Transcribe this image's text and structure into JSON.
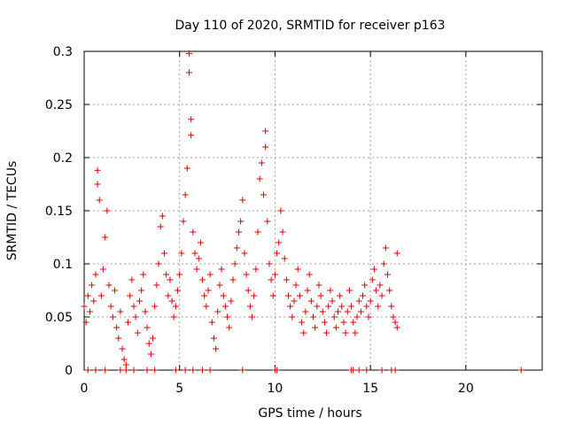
{
  "chart_data": {
    "type": "scatter",
    "title": "Day 110 of 2020, SRMTID for receiver p163",
    "xlabel": "GPS time / hours",
    "ylabel": "SRMTID / TECUs",
    "xlim": [
      0,
      24
    ],
    "ylim": [
      0,
      0.3
    ],
    "xticks": [
      0,
      5,
      10,
      15,
      20
    ],
    "yticks": [
      0,
      0.05,
      0.1,
      0.15,
      0.2,
      0.25,
      0.3
    ],
    "ytick_labels": [
      "0",
      "0.05",
      "0.1",
      "0.15",
      "0.2",
      "0.25",
      "0.3"
    ],
    "grid": true,
    "marker": "+",
    "series": [
      {
        "name": "SRMTID",
        "color": "#e00000",
        "points": [
          [
            0.0,
            0.06
          ],
          [
            0.1,
            0.045
          ],
          [
            0.2,
            0.07
          ],
          [
            0.3,
            0.055
          ],
          [
            0.4,
            0.08
          ],
          [
            0.5,
            0.065
          ],
          [
            0.6,
            0.09
          ],
          [
            0.7,
            0.188
          ],
          [
            0.7,
            0.175
          ],
          [
            0.8,
            0.16
          ],
          [
            0.9,
            0.07
          ],
          [
            1.0,
            0.095
          ],
          [
            1.1,
            0.125
          ],
          [
            1.2,
            0.15
          ],
          [
            1.3,
            0.08
          ],
          [
            1.4,
            0.06
          ],
          [
            1.5,
            0.05
          ],
          [
            1.6,
            0.075
          ],
          [
            1.7,
            0.04
          ],
          [
            1.8,
            0.03
          ],
          [
            1.9,
            0.055
          ],
          [
            2.0,
            0.02
          ],
          [
            2.1,
            0.01
          ],
          [
            2.2,
            0.005
          ],
          [
            2.3,
            0.045
          ],
          [
            2.4,
            0.07
          ],
          [
            2.5,
            0.085
          ],
          [
            2.6,
            0.06
          ],
          [
            2.7,
            0.05
          ],
          [
            2.8,
            0.035
          ],
          [
            2.9,
            0.065
          ],
          [
            3.0,
            0.075
          ],
          [
            3.1,
            0.09
          ],
          [
            3.2,
            0.055
          ],
          [
            3.3,
            0.04
          ],
          [
            3.4,
            0.025
          ],
          [
            3.5,
            0.015
          ],
          [
            3.6,
            0.03
          ],
          [
            3.7,
            0.06
          ],
          [
            3.8,
            0.08
          ],
          [
            3.9,
            0.1
          ],
          [
            4.0,
            0.135
          ],
          [
            4.1,
            0.145
          ],
          [
            4.2,
            0.11
          ],
          [
            4.3,
            0.09
          ],
          [
            4.4,
            0.07
          ],
          [
            4.5,
            0.085
          ],
          [
            4.6,
            0.065
          ],
          [
            4.7,
            0.05
          ],
          [
            4.8,
            0.06
          ],
          [
            4.9,
            0.075
          ],
          [
            5.0,
            0.09
          ],
          [
            5.1,
            0.11
          ],
          [
            5.2,
            0.14
          ],
          [
            5.3,
            0.165
          ],
          [
            5.4,
            0.19
          ],
          [
            5.5,
            0.28
          ],
          [
            5.5,
            0.298
          ],
          [
            5.6,
            0.236
          ],
          [
            5.6,
            0.221
          ],
          [
            5.7,
            0.13
          ],
          [
            5.8,
            0.11
          ],
          [
            5.9,
            0.095
          ],
          [
            6.0,
            0.105
          ],
          [
            6.1,
            0.12
          ],
          [
            6.2,
            0.085
          ],
          [
            6.3,
            0.07
          ],
          [
            6.4,
            0.06
          ],
          [
            6.5,
            0.075
          ],
          [
            6.6,
            0.09
          ],
          [
            6.7,
            0.045
          ],
          [
            6.8,
            0.03
          ],
          [
            6.9,
            0.02
          ],
          [
            7.0,
            0.055
          ],
          [
            7.1,
            0.08
          ],
          [
            7.2,
            0.095
          ],
          [
            7.3,
            0.07
          ],
          [
            7.4,
            0.06
          ],
          [
            7.5,
            0.05
          ],
          [
            7.6,
            0.04
          ],
          [
            7.7,
            0.065
          ],
          [
            7.8,
            0.085
          ],
          [
            7.9,
            0.1
          ],
          [
            8.0,
            0.115
          ],
          [
            8.1,
            0.13
          ],
          [
            8.2,
            0.14
          ],
          [
            8.3,
            0.16
          ],
          [
            8.4,
            0.11
          ],
          [
            8.5,
            0.09
          ],
          [
            8.6,
            0.075
          ],
          [
            8.7,
            0.06
          ],
          [
            8.8,
            0.05
          ],
          [
            8.9,
            0.07
          ],
          [
            9.0,
            0.095
          ],
          [
            9.1,
            0.13
          ],
          [
            9.2,
            0.18
          ],
          [
            9.3,
            0.195
          ],
          [
            9.4,
            0.165
          ],
          [
            9.5,
            0.225
          ],
          [
            9.5,
            0.21
          ],
          [
            9.6,
            0.14
          ],
          [
            9.7,
            0.1
          ],
          [
            9.8,
            0.085
          ],
          [
            9.9,
            0.07
          ],
          [
            10.0,
            0.09
          ],
          [
            10.1,
            0.11
          ],
          [
            10.2,
            0.12
          ],
          [
            10.3,
            0.15
          ],
          [
            10.4,
            0.13
          ],
          [
            10.5,
            0.105
          ],
          [
            10.6,
            0.085
          ],
          [
            10.7,
            0.07
          ],
          [
            10.8,
            0.06
          ],
          [
            10.9,
            0.05
          ],
          [
            11.0,
            0.065
          ],
          [
            11.1,
            0.08
          ],
          [
            11.2,
            0.095
          ],
          [
            11.3,
            0.07
          ],
          [
            11.4,
            0.045
          ],
          [
            11.5,
            0.035
          ],
          [
            11.6,
            0.055
          ],
          [
            11.7,
            0.075
          ],
          [
            11.8,
            0.09
          ],
          [
            11.9,
            0.065
          ],
          [
            12.0,
            0.05
          ],
          [
            12.1,
            0.04
          ],
          [
            12.2,
            0.06
          ],
          [
            12.3,
            0.08
          ],
          [
            12.4,
            0.07
          ],
          [
            12.5,
            0.055
          ],
          [
            12.6,
            0.045
          ],
          [
            12.7,
            0.035
          ],
          [
            12.8,
            0.06
          ],
          [
            12.9,
            0.075
          ],
          [
            13.0,
            0.065
          ],
          [
            13.1,
            0.05
          ],
          [
            13.2,
            0.04
          ],
          [
            13.3,
            0.055
          ],
          [
            13.4,
            0.07
          ],
          [
            13.5,
            0.06
          ],
          [
            13.6,
            0.045
          ],
          [
            13.7,
            0.035
          ],
          [
            13.8,
            0.055
          ],
          [
            13.9,
            0.075
          ],
          [
            14.0,
            0.06
          ],
          [
            14.1,
            0.045
          ],
          [
            14.2,
            0.035
          ],
          [
            14.3,
            0.05
          ],
          [
            14.4,
            0.065
          ],
          [
            14.5,
            0.055
          ],
          [
            14.6,
            0.07
          ],
          [
            14.7,
            0.08
          ],
          [
            14.8,
            0.06
          ],
          [
            14.9,
            0.05
          ],
          [
            15.0,
            0.065
          ],
          [
            15.1,
            0.085
          ],
          [
            15.2,
            0.095
          ],
          [
            15.3,
            0.075
          ],
          [
            15.4,
            0.06
          ],
          [
            15.5,
            0.08
          ],
          [
            15.6,
            0.07
          ],
          [
            15.7,
            0.1
          ],
          [
            15.8,
            0.115
          ],
          [
            15.9,
            0.09
          ],
          [
            16.0,
            0.075
          ],
          [
            16.1,
            0.06
          ],
          [
            16.2,
            0.05
          ],
          [
            16.3,
            0.045
          ],
          [
            16.4,
            0.04
          ],
          [
            16.4,
            0.11
          ],
          [
            0.2,
            0.0
          ],
          [
            0.6,
            0.0
          ],
          [
            1.1,
            0.0
          ],
          [
            1.9,
            0.0
          ],
          [
            2.2,
            0.0
          ],
          [
            2.6,
            0.0
          ],
          [
            3.3,
            0.0
          ],
          [
            3.7,
            0.0
          ],
          [
            4.8,
            0.0
          ],
          [
            5.3,
            0.0
          ],
          [
            5.7,
            0.0
          ],
          [
            6.2,
            0.0
          ],
          [
            6.6,
            0.0
          ],
          [
            8.3,
            0.0
          ],
          [
            10.0,
            0.0
          ],
          [
            10.1,
            0.0
          ],
          [
            14.0,
            0.0
          ],
          [
            14.1,
            0.0
          ],
          [
            14.4,
            0.0
          ],
          [
            14.8,
            0.0
          ],
          [
            15.6,
            0.0
          ],
          [
            16.1,
            0.0
          ],
          [
            16.3,
            0.0
          ],
          [
            22.9,
            0.0
          ]
        ]
      }
    ]
  }
}
